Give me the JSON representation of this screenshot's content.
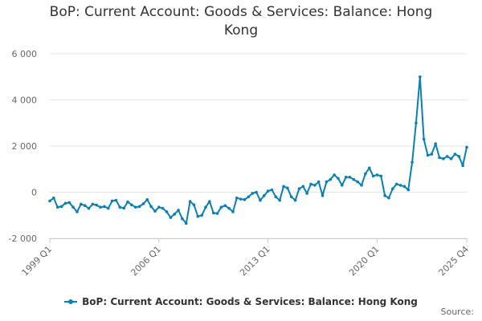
{
  "chart_data": {
    "type": "line",
    "title": "BoP: Current Account: Goods & Services: Balance: Hong Kong",
    "xlabel": "",
    "ylabel": "",
    "ylim": [
      -2000,
      6000
    ],
    "yticks": [
      -2000,
      0,
      2000,
      4000,
      6000
    ],
    "ytick_labels": [
      "-2 000",
      "0",
      "2 000",
      "4 000",
      "6 000"
    ],
    "xtick_labels": [
      "1999 Q1",
      "2006 Q1",
      "2013 Q1",
      "2020 Q1",
      "2025 Q4"
    ],
    "xtick_index": [
      0,
      28,
      56,
      84,
      107
    ],
    "grid": true,
    "legend_position": "bottom",
    "series": [
      {
        "name": "BoP: Current Account: Goods & Services: Balance: Hong Kong",
        "color": "#0a7fb4",
        "values": [
          -380,
          -250,
          -650,
          -620,
          -480,
          -450,
          -650,
          -850,
          -520,
          -580,
          -700,
          -520,
          -560,
          -650,
          -620,
          -700,
          -380,
          -350,
          -650,
          -690,
          -420,
          -550,
          -650,
          -620,
          -500,
          -320,
          -620,
          -820,
          -650,
          -700,
          -850,
          -1100,
          -950,
          -780,
          -1150,
          -1350,
          -400,
          -550,
          -1050,
          -1000,
          -650,
          -400,
          -900,
          -920,
          -650,
          -580,
          -700,
          -850,
          -250,
          -300,
          -320,
          -200,
          -50,
          0,
          -350,
          -150,
          50,
          100,
          -200,
          -350,
          250,
          180,
          -200,
          -350,
          150,
          250,
          -50,
          350,
          300,
          450,
          -150,
          450,
          550,
          750,
          600,
          300,
          650,
          650,
          550,
          450,
          300,
          800,
          1050,
          700,
          750,
          700,
          -150,
          -250,
          150,
          350,
          300,
          250,
          100,
          1300,
          3000,
          5000,
          2300,
          1600,
          1650,
          2100,
          1500,
          1450,
          1550,
          1450,
          1650,
          1550,
          1150,
          1950
        ]
      }
    ]
  },
  "legend": {
    "label": "BoP: Current Account: Goods & Services: Balance: Hong Kong"
  },
  "source_label": "Source:"
}
